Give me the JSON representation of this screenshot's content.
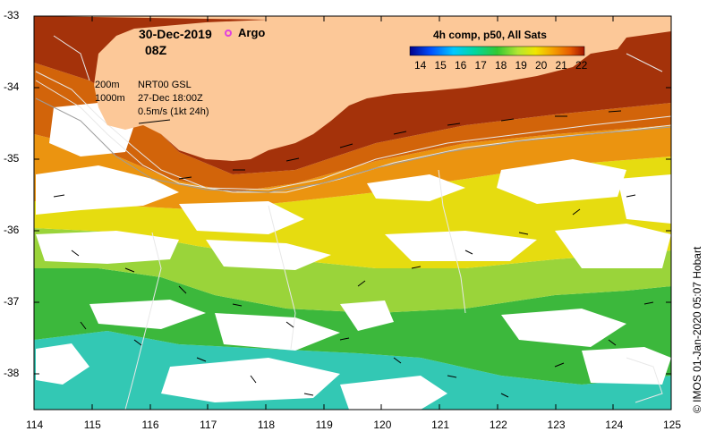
{
  "map": {
    "title_date": "30-Dec-2019",
    "title_time": "08Z",
    "argo_label": "Argo",
    "legend": {
      "title": "4h comp, p50, All Sats",
      "ticks": [
        "14",
        "15",
        "16",
        "17",
        "18",
        "19",
        "20",
        "21",
        "22"
      ]
    },
    "contours_info": {
      "depth1": "200m",
      "depth2": "1000m",
      "gsl_label": "NRT00 GSL",
      "gsl_time": "27-Dec 18:00Z",
      "scale_label": "0.5m/s (1kt 24h)"
    },
    "credit": "© IMOS 01-Jan-2020 05:07 Hobart",
    "x_ticks": [
      "114",
      "115",
      "116",
      "117",
      "118",
      "119",
      "120",
      "121",
      "122",
      "123",
      "124",
      "125"
    ],
    "y_ticks": [
      "-33",
      "-34",
      "-35",
      "-36",
      "-37",
      "-38"
    ],
    "colors": {
      "land": "#fcc898",
      "no_data": "#ffffff",
      "argo": "#e040e0",
      "sst_scale": [
        "#00008c",
        "#0050ff",
        "#00c8ff",
        "#00d7a0",
        "#32c832",
        "#b4e632",
        "#f0e600",
        "#f5a000",
        "#e65a00",
        "#a01400"
      ]
    }
  }
}
